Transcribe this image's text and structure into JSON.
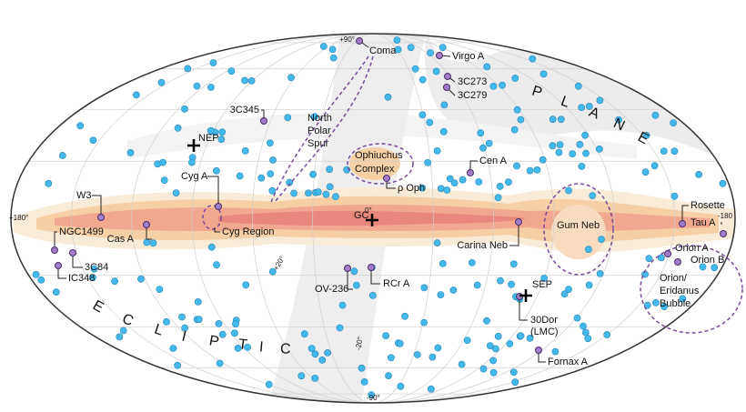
{
  "coords": {
    "north_pole": "+90°",
    "left_edge": "+180°",
    "right_edge": "-180",
    "center": "0°",
    "plus20": "+20°",
    "minus20": "-20°",
    "south_pole": "-90°"
  },
  "labels": {
    "coma": "Coma",
    "virgo_a": "Virgo A",
    "c273": "3C273",
    "c279": "3C279",
    "c345": "3C345",
    "nep": "NEP",
    "north_polar_spur": [
      "North",
      "Polar",
      "Spur"
    ],
    "ophiuchus": [
      "Ophiuchus",
      "Complex"
    ],
    "cen_a": "Cen A",
    "cyg_a": "Cyg A",
    "rho_oph": "ρ Oph",
    "w3": "W3",
    "gc": "GC",
    "rosette": "Rosette",
    "tau_a": "Tau A",
    "cyg_region": "Cyg Region",
    "gum_neb": "Gum Neb",
    "carina_neb": "Carina Neb",
    "cas_a": "Cas A",
    "ngc1499": "NGC1499",
    "c84": "3C84",
    "ic348": "IC348",
    "orion_a": "Orion A",
    "orion_b": "Orion B",
    "orion_eridanus": [
      "Orion/",
      "Eridanus",
      "Bubble"
    ],
    "ov236": "OV-236",
    "rcr_a": "RCr A",
    "sep": "SEP",
    "dor30": [
      "30Dor",
      "(LMC)"
    ],
    "fornax_a": "Fornax A"
  },
  "plane_letters": [
    "P",
    "L",
    "A",
    "N",
    "E"
  ],
  "ecliptic_letters": [
    "E",
    "C",
    "L",
    "I",
    "P",
    "T",
    "I",
    "C"
  ]
}
